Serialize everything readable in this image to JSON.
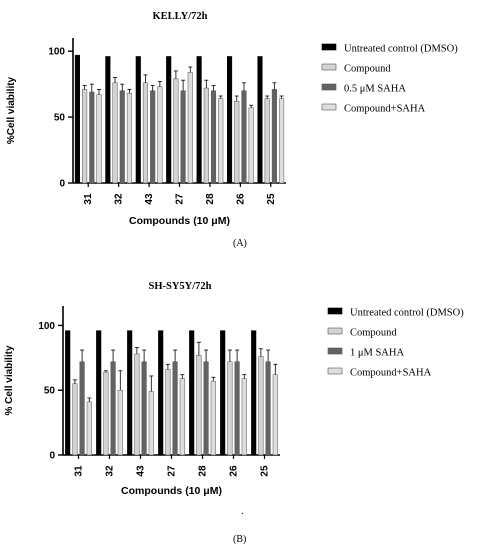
{
  "colors": {
    "untreated": "#000000",
    "compound": "#d3d3d3",
    "saha": "#636363",
    "combo": "#dedede",
    "stroke": "#000000"
  },
  "panel_labels": [
    "(A)",
    "(B)"
  ],
  "footnote_dot": ".",
  "chart_data": [
    {
      "type": "bar",
      "title": "KELLY/72h",
      "xlabel": "Compounds (10 μM)",
      "ylabel": "%Cell viability",
      "ylim": [
        0,
        110
      ],
      "yticks": [
        0,
        50,
        100
      ],
      "grid": false,
      "legend_position": "right",
      "categories": [
        "31",
        "32",
        "43",
        "27",
        "28",
        "26",
        "25"
      ],
      "series": [
        {
          "name": "Untreated control (DMSO)",
          "values": [
            97,
            96,
            96,
            96,
            96,
            96,
            96
          ],
          "errors": [
            0,
            0,
            0,
            0,
            0,
            0,
            0
          ]
        },
        {
          "name": "Compound",
          "values": [
            71,
            76,
            76,
            79,
            72,
            62,
            64
          ],
          "errors": [
            3,
            4,
            6,
            6,
            6,
            4,
            2
          ]
        },
        {
          "name": "0.5 μM SAHA",
          "values": [
            69,
            70,
            70,
            70,
            70,
            70,
            71
          ],
          "errors": [
            6,
            5,
            4,
            8,
            4,
            6,
            5
          ]
        },
        {
          "name": "Compound+SAHA",
          "values": [
            67,
            68,
            73,
            84,
            64,
            57,
            64
          ],
          "errors": [
            4,
            3,
            4,
            4,
            2,
            2,
            2
          ]
        }
      ]
    },
    {
      "type": "bar",
      "title": "SH-SY5Y/72h",
      "xlabel": "Compounds (10 μM)",
      "ylabel": "% Cell viability",
      "ylim": [
        0,
        115
      ],
      "yticks": [
        0,
        50,
        100
      ],
      "grid": false,
      "legend_position": "right",
      "categories": [
        "31",
        "32",
        "43",
        "27",
        "28",
        "26",
        "25"
      ],
      "series": [
        {
          "name": "Untreated control (DMSO)",
          "values": [
            96,
            96,
            96,
            96,
            96,
            96,
            96
          ],
          "errors": [
            0,
            0,
            0,
            0,
            0,
            0,
            0
          ]
        },
        {
          "name": "Compound",
          "values": [
            55,
            64,
            78,
            66,
            77,
            72,
            76
          ],
          "errors": [
            3,
            1,
            5,
            4,
            10,
            9,
            6
          ]
        },
        {
          "name": "1 μM SAHA",
          "values": [
            72,
            72,
            72,
            72,
            72,
            72,
            72
          ],
          "errors": [
            9,
            9,
            9,
            9,
            9,
            9,
            9
          ]
        },
        {
          "name": "Compound+SAHA",
          "values": [
            41,
            50,
            49,
            59,
            57,
            59,
            62
          ],
          "errors": [
            3,
            15,
            12,
            3,
            3,
            3,
            8
          ]
        }
      ]
    }
  ]
}
